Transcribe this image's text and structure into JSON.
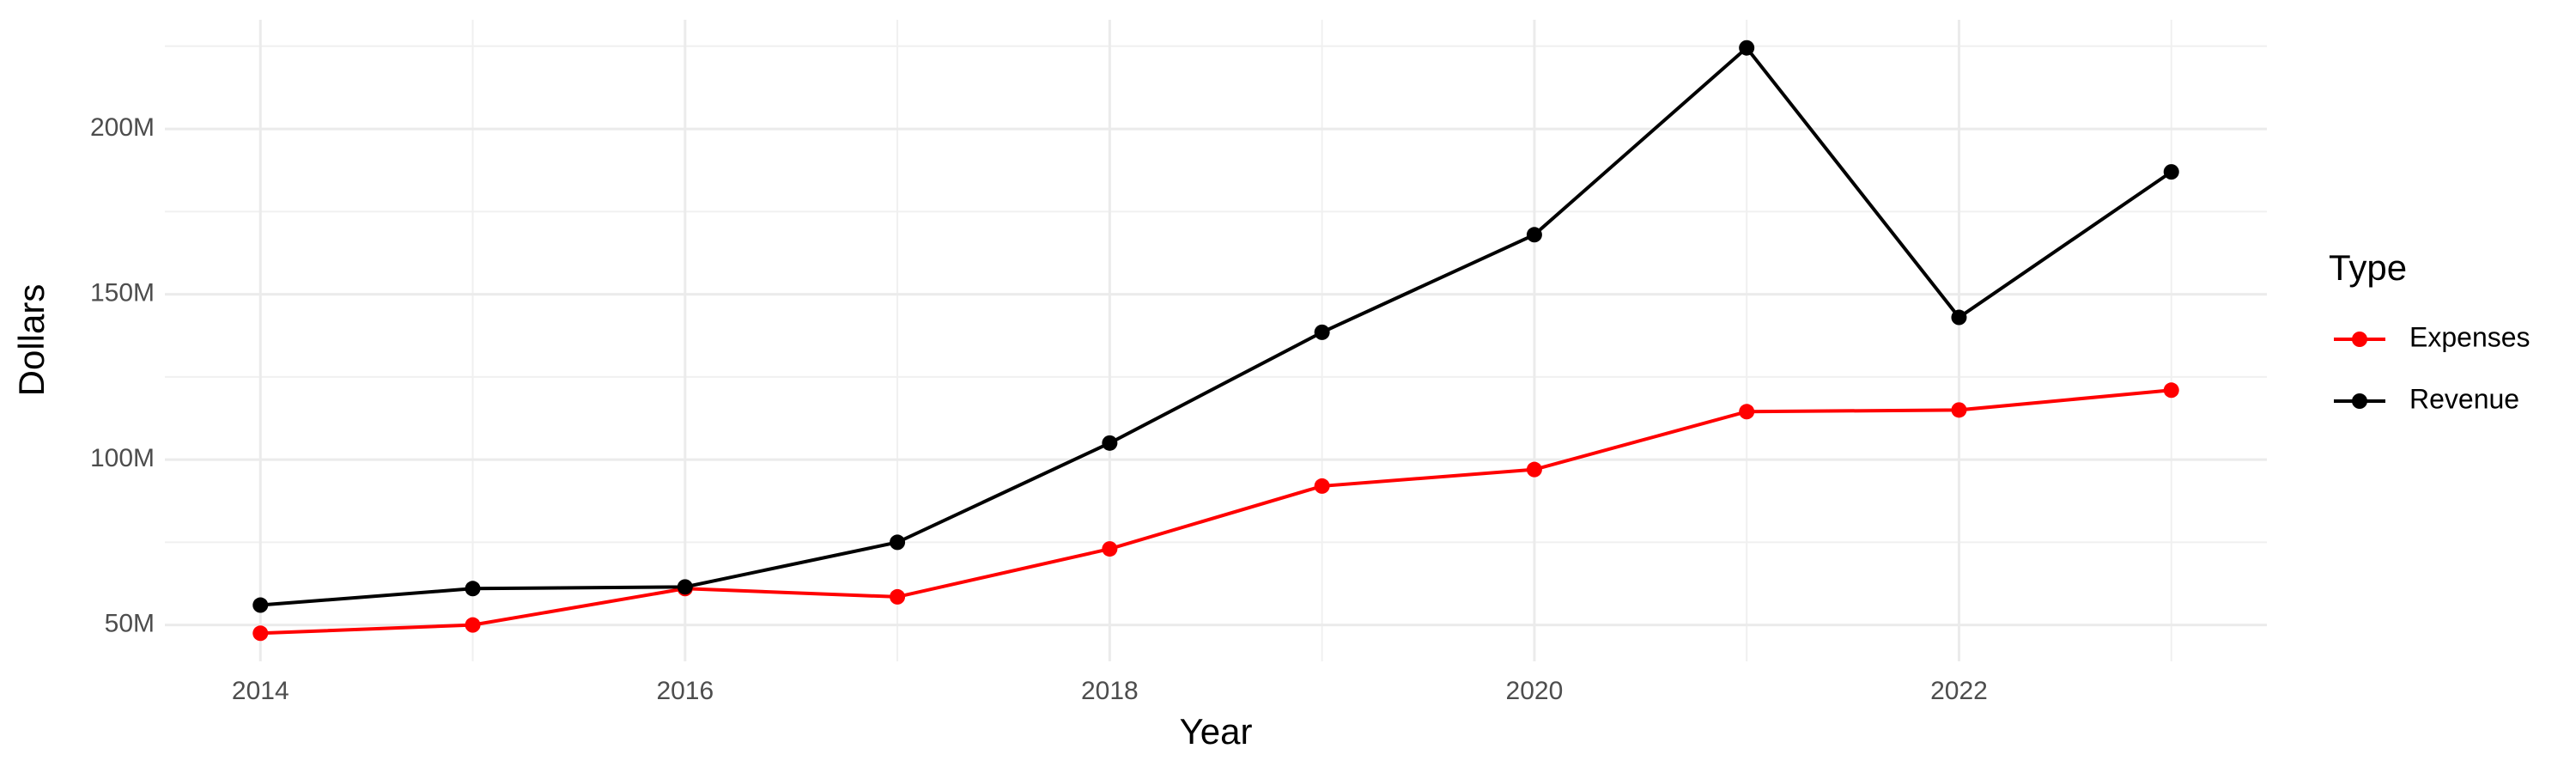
{
  "chart_data": {
    "type": "line",
    "x_label": "Year",
    "y_label": "Dollars",
    "x": [
      2014,
      2015,
      2016,
      2017,
      2018,
      2019,
      2020,
      2021,
      2022,
      2023
    ],
    "series": [
      {
        "name": "Expenses",
        "color": "#ff0000",
        "values": [
          47500000,
          50000000,
          61000000,
          58500000,
          73000000,
          92000000,
          97000000,
          114500000,
          115000000,
          121000000
        ]
      },
      {
        "name": "Revenue",
        "color": "#000000",
        "values": [
          56000000,
          61000000,
          61500000,
          75000000,
          105000000,
          138500000,
          168000000,
          224500000,
          143000000,
          187000000
        ]
      }
    ],
    "xlim": [
      2013.55,
      2023.45
    ],
    "ylim": [
      39000000,
      233000000
    ],
    "xticks": [
      2014,
      2016,
      2018,
      2020,
      2022
    ],
    "yticks": [
      {
        "value": 50000000,
        "label": "50M"
      },
      {
        "value": 100000000,
        "label": "100M"
      },
      {
        "value": 150000000,
        "label": "150M"
      },
      {
        "value": 200000000,
        "label": "200M"
      }
    ],
    "legend_title": "Type",
    "legend_position": "right",
    "grid": true
  }
}
